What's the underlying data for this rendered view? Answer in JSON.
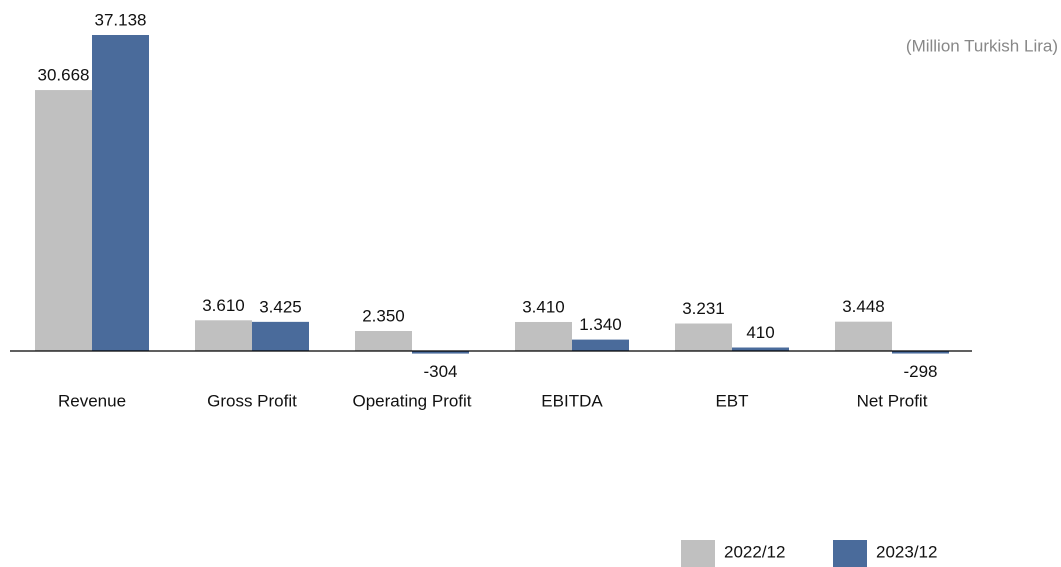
{
  "chart_data": {
    "type": "bar",
    "subtitle": "(Million Turkish Lira)",
    "categories": [
      "Revenue",
      "Gross Profit",
      "Operating Profit",
      "EBITDA",
      "EBT",
      "Net Profit"
    ],
    "series": [
      {
        "name": "2022/12",
        "color": "#c0c0c0",
        "values": [
          30668,
          3610,
          2350,
          3410,
          3231,
          3448
        ],
        "value_labels": [
          "30.668",
          "3.610",
          "2.350",
          "3.410",
          "3.231",
          "3.448"
        ]
      },
      {
        "name": "2023/12",
        "color": "#4a6b9b",
        "values": [
          37138,
          3425,
          -304,
          1340,
          410,
          -298
        ],
        "value_labels": [
          "37.138",
          "3.425",
          "-304",
          "1.340",
          "410",
          "-298"
        ]
      }
    ],
    "legend": "bottom-right"
  }
}
